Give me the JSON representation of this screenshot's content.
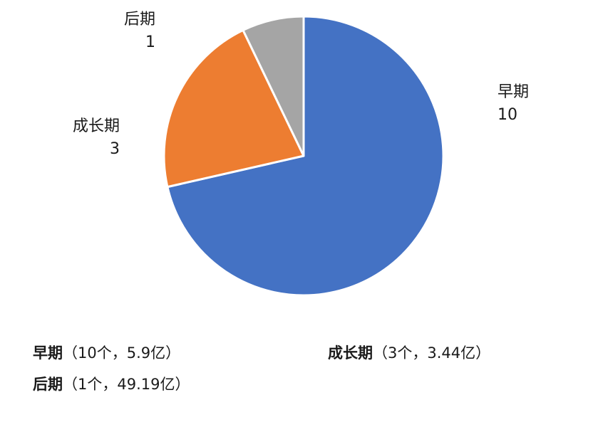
{
  "chart_data": {
    "type": "pie",
    "categories": [
      "早期",
      "成长期",
      "后期"
    ],
    "values": [
      10,
      3,
      1
    ],
    "colors": [
      "#4472C4",
      "#ED7D31",
      "#A5A5A5"
    ],
    "start_angle_deg": 0,
    "direction": "clockwise",
    "slice_labels": [
      {
        "name": "早期",
        "value": "10"
      },
      {
        "name": "成长期",
        "value": "3"
      },
      {
        "name": "后期",
        "value": "1"
      }
    ]
  },
  "legend": [
    {
      "name": "早期",
      "detail": "（10个，5.9亿）"
    },
    {
      "name": "成长期",
      "detail": "（3个，3.44亿）"
    },
    {
      "name": "后期",
      "detail": "（1个，49.19亿）"
    }
  ]
}
